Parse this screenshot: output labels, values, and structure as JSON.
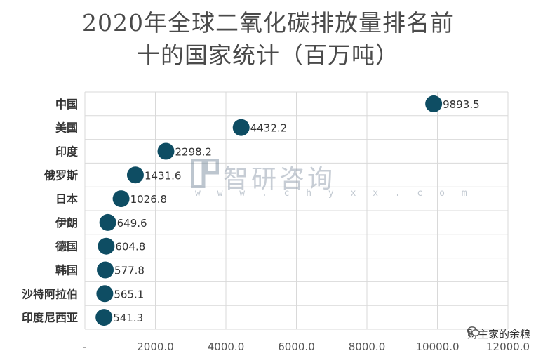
{
  "title_line1": "2020年全球二氧化碳排放量排名前",
  "title_line2": "十的国家统计（百万吨）",
  "watermark": {
    "text": "智研咨询",
    "url": "w w w . c h y x x . c o m"
  },
  "footer": {
    "text": "财主家的余粮"
  },
  "chart_data": {
    "type": "scatter",
    "title": "2020年全球二氧化碳排放量排名前十的国家统计（百万吨）",
    "categories": [
      "中国",
      "美国",
      "印度",
      "俄罗斯",
      "日本",
      "伊朗",
      "德国",
      "韩国",
      "沙特阿拉伯",
      "印度尼西亚"
    ],
    "values": [
      9893.5,
      4432.2,
      2298.2,
      1431.6,
      1026.8,
      649.6,
      604.8,
      577.8,
      565.1,
      541.3
    ],
    "value_labels": [
      "9893.5",
      "4432.2",
      "2298.2",
      "1431.6",
      "1026.8",
      "649.6",
      "604.8",
      "577.8",
      "565.1",
      "541.3"
    ],
    "xlim": [
      0,
      12000
    ],
    "x_ticks": [
      0,
      2000,
      4000,
      6000,
      8000,
      10000,
      12000
    ],
    "x_tick_labels": [
      "-",
      "2000.0",
      "4000.0",
      "6000.0",
      "8000.0",
      "10000.0",
      "12000.0"
    ],
    "marker_color": "#0e4d63",
    "grid": true
  }
}
